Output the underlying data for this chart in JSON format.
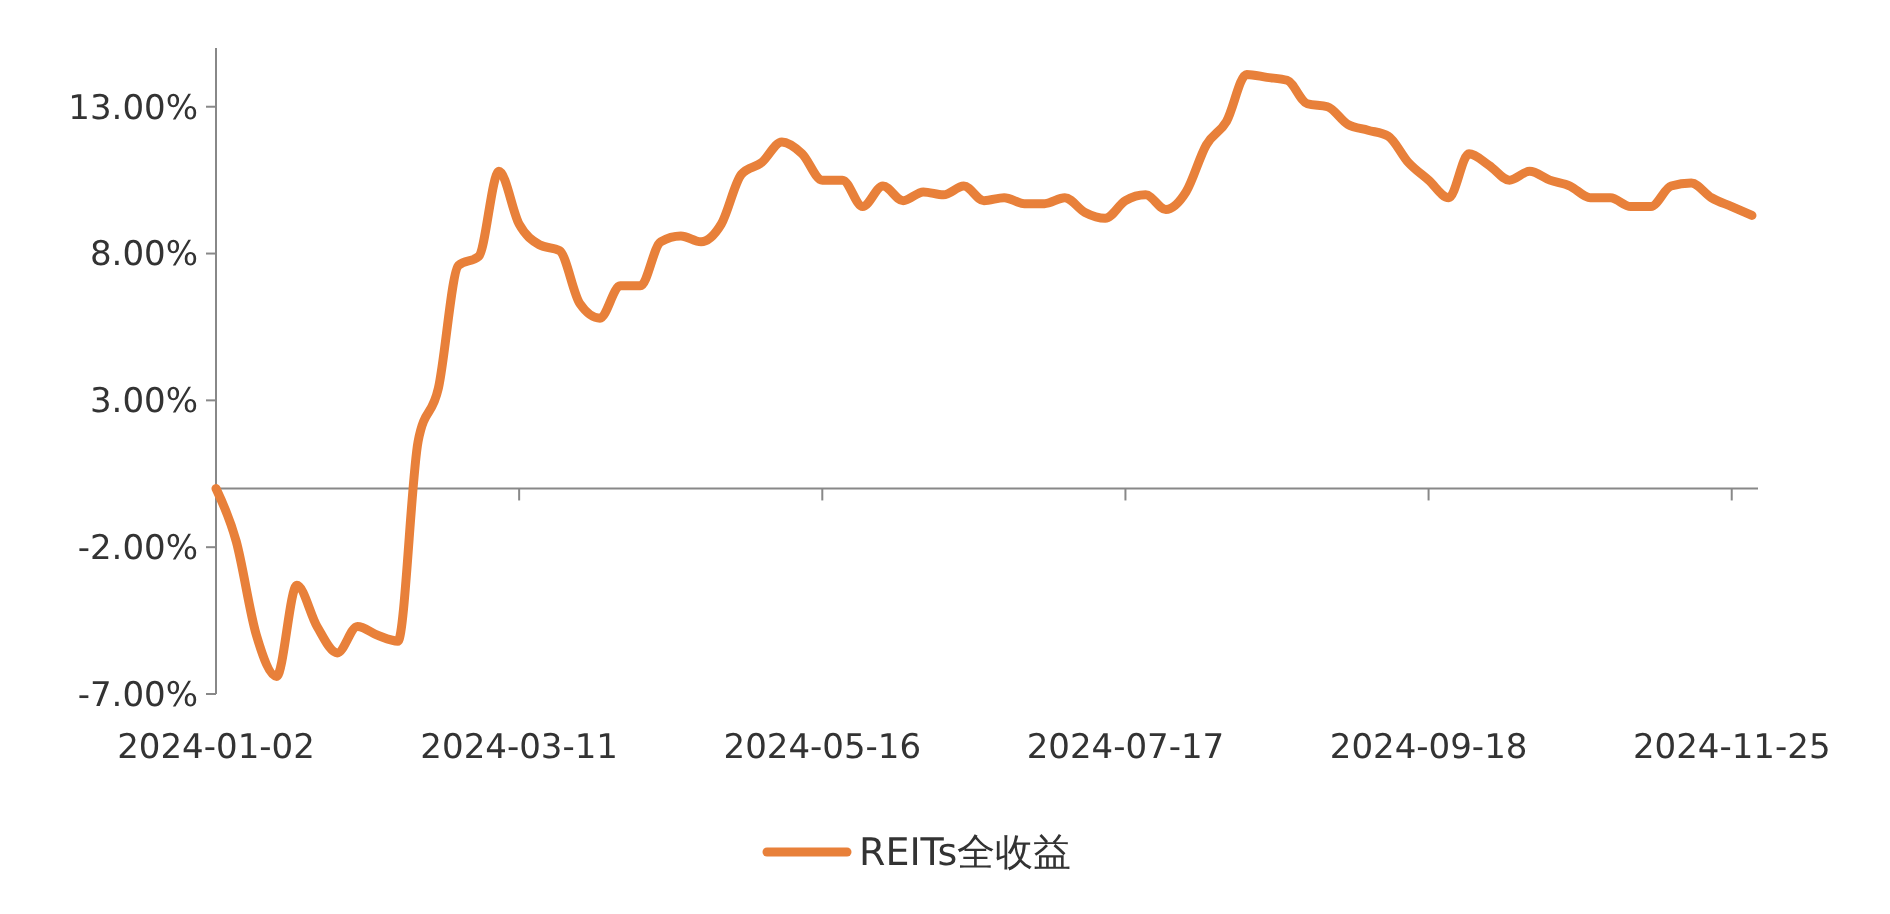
{
  "chart_data": {
    "type": "line",
    "categories": [
      "2024-01-02",
      null,
      null,
      null,
      null,
      null,
      null,
      null,
      null,
      null,
      null,
      null,
      null,
      null,
      null,
      "2024-03-11",
      null,
      null,
      null,
      null,
      null,
      null,
      null,
      null,
      null,
      null,
      null,
      null,
      null,
      null,
      "2024-05-16",
      null,
      null,
      null,
      null,
      null,
      null,
      null,
      null,
      null,
      null,
      null,
      null,
      null,
      null,
      "2024-07-17",
      null,
      null,
      null,
      null,
      null,
      null,
      null,
      null,
      null,
      null,
      null,
      null,
      null,
      null,
      "2024-09-18",
      null,
      null,
      null,
      null,
      null,
      null,
      null,
      null,
      null,
      null,
      null,
      null,
      null,
      null,
      "2024-11-25",
      null
    ],
    "ylim": [
      -7,
      15
    ],
    "yticks": [
      {
        "value": -7,
        "label": "-7.00%"
      },
      {
        "value": -2,
        "label": "-2.00%"
      },
      {
        "value": 3,
        "label": "3.00%"
      },
      {
        "value": 8,
        "label": "8.00%"
      },
      {
        "value": 13,
        "label": "13.00%"
      }
    ],
    "series": [
      {
        "name": "REITs全收益",
        "color": "#e8803a",
        "values": [
          0,
          -1.8,
          -5.0,
          -6.4,
          -3.3,
          -4.7,
          -5.6,
          -4.7,
          -5.0,
          -5.2,
          1.6,
          3.4,
          7.6,
          7.9,
          10.8,
          9.0,
          8.3,
          8.1,
          6.3,
          5.8,
          6.9,
          6.9,
          8.4,
          8.6,
          8.4,
          9.0,
          10.7,
          11.1,
          11.8,
          11.4,
          10.5,
          10.5,
          9.6,
          10.3,
          9.8,
          10.1,
          10.0,
          10.3,
          9.8,
          9.9,
          9.7,
          9.7,
          9.9,
          9.4,
          9.2,
          9.8,
          10.0,
          9.5,
          10.1,
          11.7,
          12.5,
          14.1,
          14.0,
          13.9,
          13.1,
          13.0,
          12.4,
          12.2,
          12.0,
          11.1,
          10.5,
          9.9,
          11.4,
          11.0,
          10.5,
          10.8,
          10.5,
          10.3,
          9.9,
          9.9,
          9.6,
          9.6,
          10.3,
          10.4,
          9.9,
          9.6,
          9.3
        ]
      }
    ],
    "legend": "bottom"
  }
}
